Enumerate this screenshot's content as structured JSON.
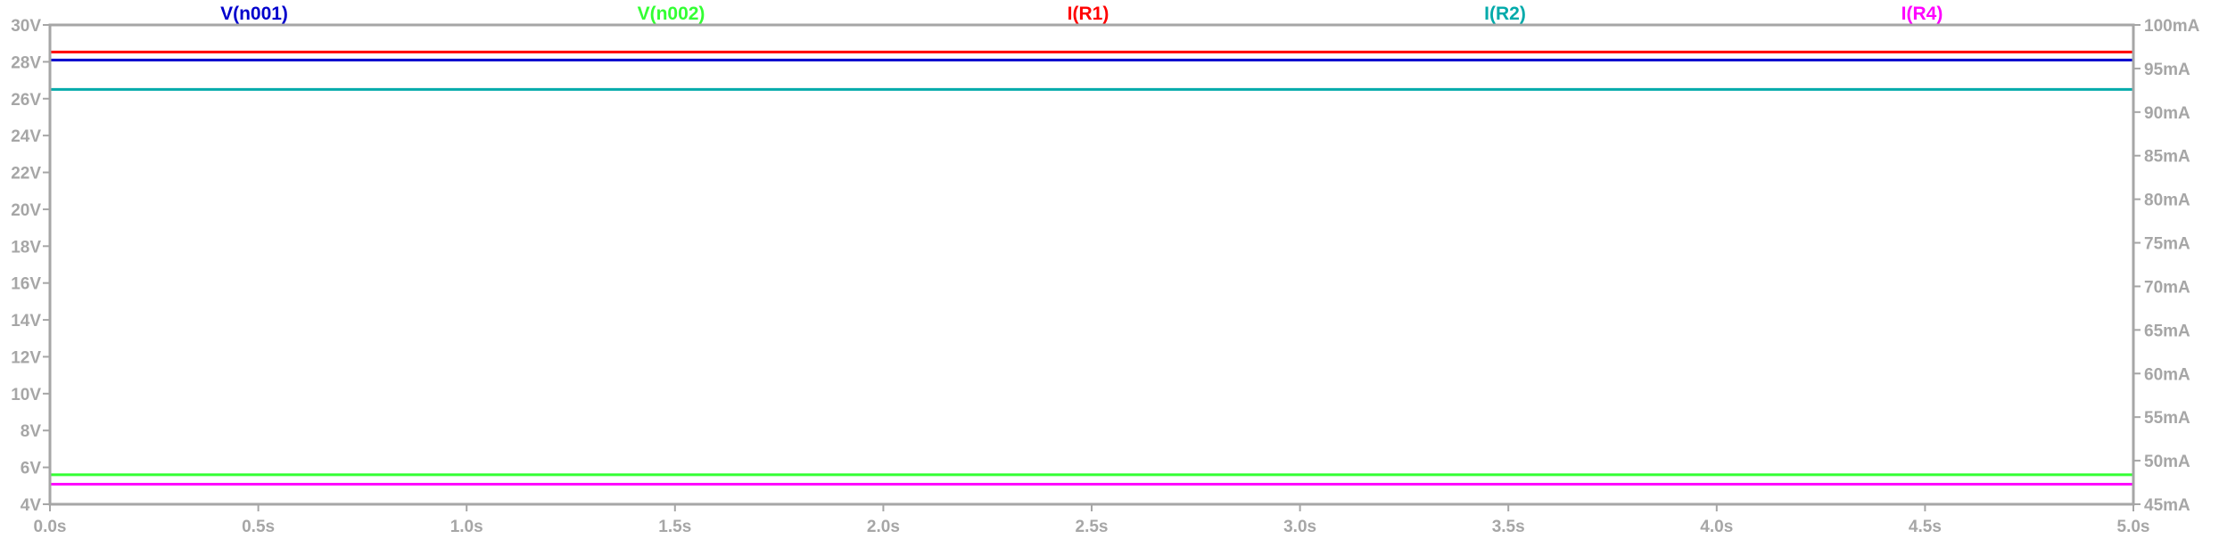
{
  "chart_data": {
    "type": "line",
    "x": [
      0.0,
      5.0
    ],
    "xlim": [
      0.0,
      5.0
    ],
    "x_ticks": [
      0.0,
      0.5,
      1.0,
      1.5,
      2.0,
      2.5,
      3.0,
      3.5,
      4.0,
      4.5,
      5.0
    ],
    "x_tick_labels": [
      "0.0s",
      "0.5s",
      "1.0s",
      "1.5s",
      "2.0s",
      "2.5s",
      "3.0s",
      "3.5s",
      "4.0s",
      "4.5s",
      "5.0s"
    ],
    "y_left": {
      "unit": "V",
      "lim": [
        4,
        30
      ],
      "ticks": [
        4,
        6,
        8,
        10,
        12,
        14,
        16,
        18,
        20,
        22,
        24,
        26,
        28,
        30
      ],
      "tick_labels": [
        "4V",
        "6V",
        "8V",
        "10V",
        "12V",
        "14V",
        "16V",
        "18V",
        "20V",
        "22V",
        "24V",
        "26V",
        "28V",
        "30V"
      ]
    },
    "y_right": {
      "unit": "mA",
      "lim": [
        45,
        100
      ],
      "ticks": [
        45,
        50,
        55,
        60,
        65,
        70,
        75,
        80,
        85,
        90,
        95,
        100
      ],
      "tick_labels": [
        "45mA",
        "50mA",
        "55mA",
        "60mA",
        "65mA",
        "70mA",
        "75mA",
        "80mA",
        "85mA",
        "90mA",
        "95mA",
        "100mA"
      ]
    },
    "grid": false,
    "legend": "top",
    "series": [
      {
        "name": "V(n001)",
        "axis": "left",
        "color": "#0000cc",
        "values": [
          28.1,
          28.1
        ]
      },
      {
        "name": "V(n002)",
        "axis": "left",
        "color": "#33ff33",
        "values": [
          5.6,
          5.6
        ]
      },
      {
        "name": "I(R1)",
        "axis": "right",
        "color": "#ff0000",
        "values": [
          96.9,
          96.9
        ]
      },
      {
        "name": "I(R2)",
        "axis": "right",
        "color": "#00aaaa",
        "values": [
          92.6,
          92.6
        ]
      },
      {
        "name": "I(R4)",
        "axis": "right",
        "color": "#ff00ff",
        "values": [
          47.3,
          47.3
        ]
      }
    ]
  }
}
